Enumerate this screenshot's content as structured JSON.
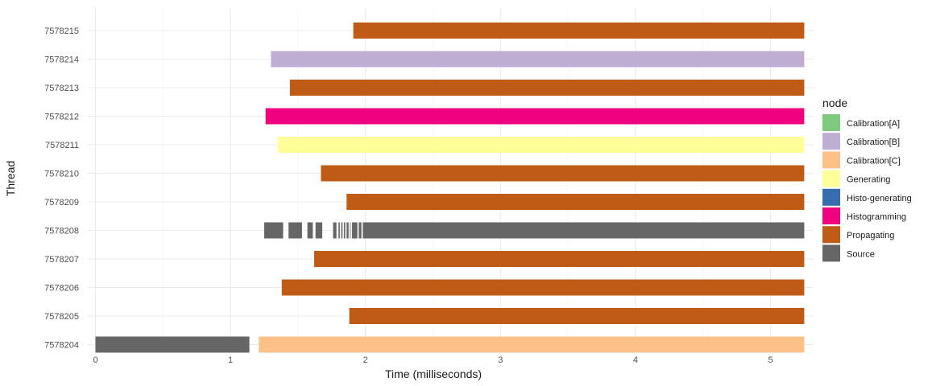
{
  "chart_data": {
    "type": "gantt",
    "xlabel": "Time (milliseconds)",
    "ylabel": "Thread",
    "xlim": [
      0,
      5.25
    ],
    "x_ticks": [
      0,
      1,
      2,
      3,
      4,
      5
    ],
    "grid": true,
    "legend": {
      "title": "node",
      "position": "right",
      "entries": [
        {
          "label": "Calibration[A]",
          "color": "#7fc97f"
        },
        {
          "label": "Calibration[B]",
          "color": "#beaed4"
        },
        {
          "label": "Calibration[C]",
          "color": "#fdc086"
        },
        {
          "label": "Generating",
          "color": "#ffff99"
        },
        {
          "label": "Histo-generating",
          "color": "#386cb0"
        },
        {
          "label": "Histogramming",
          "color": "#f0027f"
        },
        {
          "label": "Propagating",
          "color": "#bf5b17"
        },
        {
          "label": "Source",
          "color": "#666666"
        }
      ]
    },
    "threads": [
      "7578204",
      "7578205",
      "7578206",
      "7578207",
      "7578208",
      "7578209",
      "7578210",
      "7578211",
      "7578212",
      "7578213",
      "7578214",
      "7578215"
    ],
    "segments": [
      {
        "thread": "7578215",
        "node": "Propagating",
        "start": 1.91,
        "end": 5.25
      },
      {
        "thread": "7578214",
        "node": "Calibration[B]",
        "start": 1.3,
        "end": 5.25
      },
      {
        "thread": "7578213",
        "node": "Propagating",
        "start": 1.44,
        "end": 5.25
      },
      {
        "thread": "7578212",
        "node": "Histogramming",
        "start": 1.26,
        "end": 5.25
      },
      {
        "thread": "7578211",
        "node": "Generating",
        "start": 1.35,
        "end": 5.25
      },
      {
        "thread": "7578210",
        "node": "Propagating",
        "start": 1.67,
        "end": 5.25
      },
      {
        "thread": "7578209",
        "node": "Propagating",
        "start": 1.86,
        "end": 5.25
      },
      {
        "thread": "7578208",
        "node": "Source",
        "start": 1.25,
        "end": 1.39
      },
      {
        "thread": "7578208",
        "node": "Source",
        "start": 1.43,
        "end": 1.53
      },
      {
        "thread": "7578208",
        "node": "Source",
        "start": 1.57,
        "end": 1.61
      },
      {
        "thread": "7578208",
        "node": "Source",
        "start": 1.63,
        "end": 1.68
      },
      {
        "thread": "7578208",
        "node": "Source",
        "start": 1.76,
        "end": 1.785
      },
      {
        "thread": "7578208",
        "node": "Source",
        "start": 1.8,
        "end": 1.81
      },
      {
        "thread": "7578208",
        "node": "Source",
        "start": 1.82,
        "end": 1.83
      },
      {
        "thread": "7578208",
        "node": "Source",
        "start": 1.84,
        "end": 1.85
      },
      {
        "thread": "7578208",
        "node": "Source",
        "start": 1.86,
        "end": 1.875
      },
      {
        "thread": "7578208",
        "node": "Source",
        "start": 1.885,
        "end": 1.89
      },
      {
        "thread": "7578208",
        "node": "Source",
        "start": 1.9,
        "end": 1.94
      },
      {
        "thread": "7578208",
        "node": "Source",
        "start": 1.95,
        "end": 1.97
      },
      {
        "thread": "7578208",
        "node": "Source",
        "start": 1.98,
        "end": 5.25
      },
      {
        "thread": "7578207",
        "node": "Propagating",
        "start": 1.62,
        "end": 5.25
      },
      {
        "thread": "7578206",
        "node": "Propagating",
        "start": 1.38,
        "end": 5.25
      },
      {
        "thread": "7578205",
        "node": "Propagating",
        "start": 1.88,
        "end": 5.25
      },
      {
        "thread": "7578204",
        "node": "Source",
        "start": 0.0,
        "end": 1.14
      },
      {
        "thread": "7578204",
        "node": "Calibration[C]",
        "start": 1.21,
        "end": 5.25
      }
    ]
  }
}
